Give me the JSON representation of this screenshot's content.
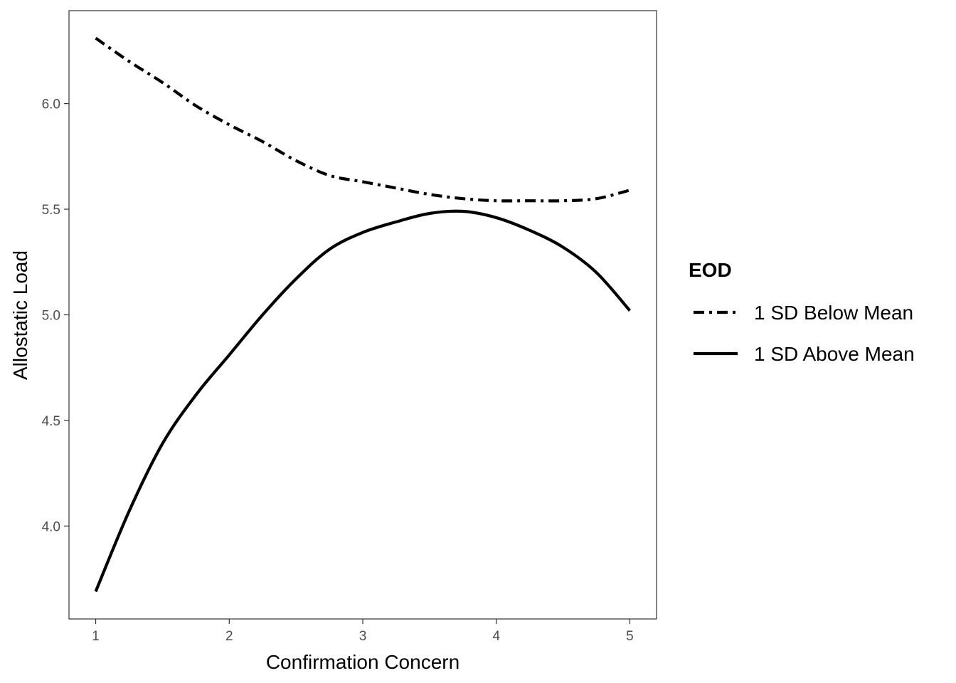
{
  "chart_data": {
    "type": "line",
    "title": "",
    "xlabel": "Confirmation Concern",
    "ylabel": "Allostatic Load",
    "xlim": [
      0.8,
      5.2
    ],
    "ylim": [
      3.56,
      6.44
    ],
    "x_ticks": [
      1,
      2,
      3,
      4,
      5
    ],
    "x_tick_labels": [
      "1",
      "2",
      "3",
      "4",
      "5"
    ],
    "y_ticks": [
      4.0,
      4.5,
      5.0,
      5.5,
      6.0
    ],
    "y_tick_labels": [
      "4.0",
      "4.5",
      "5.0",
      "5.5",
      "6.0"
    ],
    "grid": false,
    "legend": {
      "title": "EOD",
      "position": "right"
    },
    "series": [
      {
        "name": "1 SD Below Mean",
        "line_style": "dashdot",
        "color": "#000000",
        "x": [
          1.0,
          1.25,
          1.5,
          1.75,
          2.0,
          2.25,
          2.5,
          2.75,
          3.0,
          3.25,
          3.5,
          3.75,
          4.0,
          4.25,
          4.5,
          4.75,
          5.0
        ],
        "y": [
          6.31,
          6.2,
          6.1,
          5.99,
          5.9,
          5.82,
          5.73,
          5.66,
          5.63,
          5.6,
          5.57,
          5.55,
          5.54,
          5.54,
          5.54,
          5.55,
          5.59
        ]
      },
      {
        "name": "1 SD Above Mean",
        "line_style": "solid",
        "color": "#000000",
        "x": [
          1.0,
          1.25,
          1.5,
          1.75,
          2.0,
          2.25,
          2.5,
          2.75,
          3.0,
          3.25,
          3.5,
          3.75,
          4.0,
          4.25,
          4.5,
          4.75,
          5.0
        ],
        "y": [
          3.69,
          4.07,
          4.39,
          4.62,
          4.81,
          5.0,
          5.17,
          5.31,
          5.39,
          5.44,
          5.48,
          5.49,
          5.46,
          5.4,
          5.32,
          5.2,
          5.02
        ]
      }
    ]
  }
}
